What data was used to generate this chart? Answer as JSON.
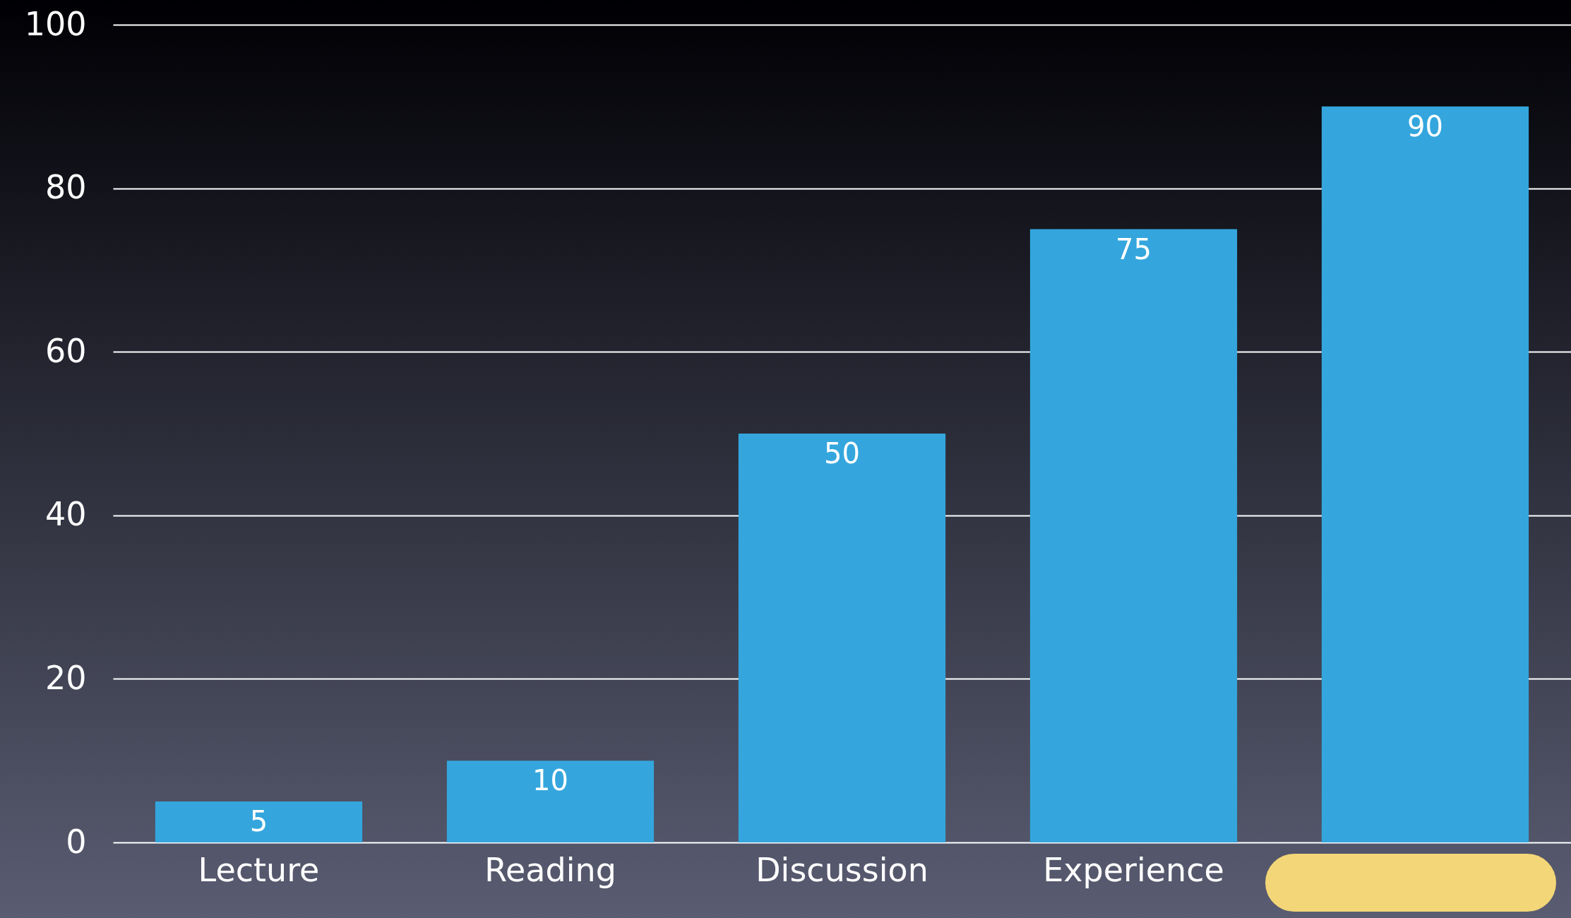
{
  "chart_data": {
    "type": "bar",
    "categories": [
      "Lecture",
      "Reading",
      "Discussion",
      "Experience",
      null
    ],
    "values": [
      5,
      10,
      50,
      75,
      90
    ],
    "color": "#34a6dd",
    "ylim": [
      0,
      100
    ],
    "yticks": [
      0,
      20,
      40,
      60,
      80,
      100
    ],
    "grid": "y",
    "data_labels": true
  }
}
